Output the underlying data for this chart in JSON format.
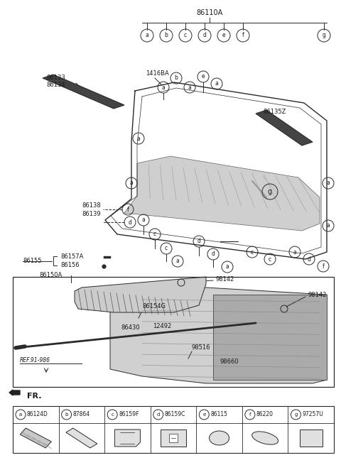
{
  "bg_color": "#ffffff",
  "line_color": "#2a2a2a",
  "text_color": "#1a1a1a",
  "fig_width": 4.8,
  "fig_height": 6.55,
  "dpi": 100,
  "legend_items": [
    {
      "letter": "a",
      "code": "86124D"
    },
    {
      "letter": "b",
      "code": "87864"
    },
    {
      "letter": "c",
      "code": "86159F"
    },
    {
      "letter": "d",
      "code": "86159C"
    },
    {
      "letter": "e",
      "code": "86115"
    },
    {
      "letter": "f",
      "code": "86220"
    },
    {
      "letter": "g",
      "code": "97257U"
    }
  ]
}
